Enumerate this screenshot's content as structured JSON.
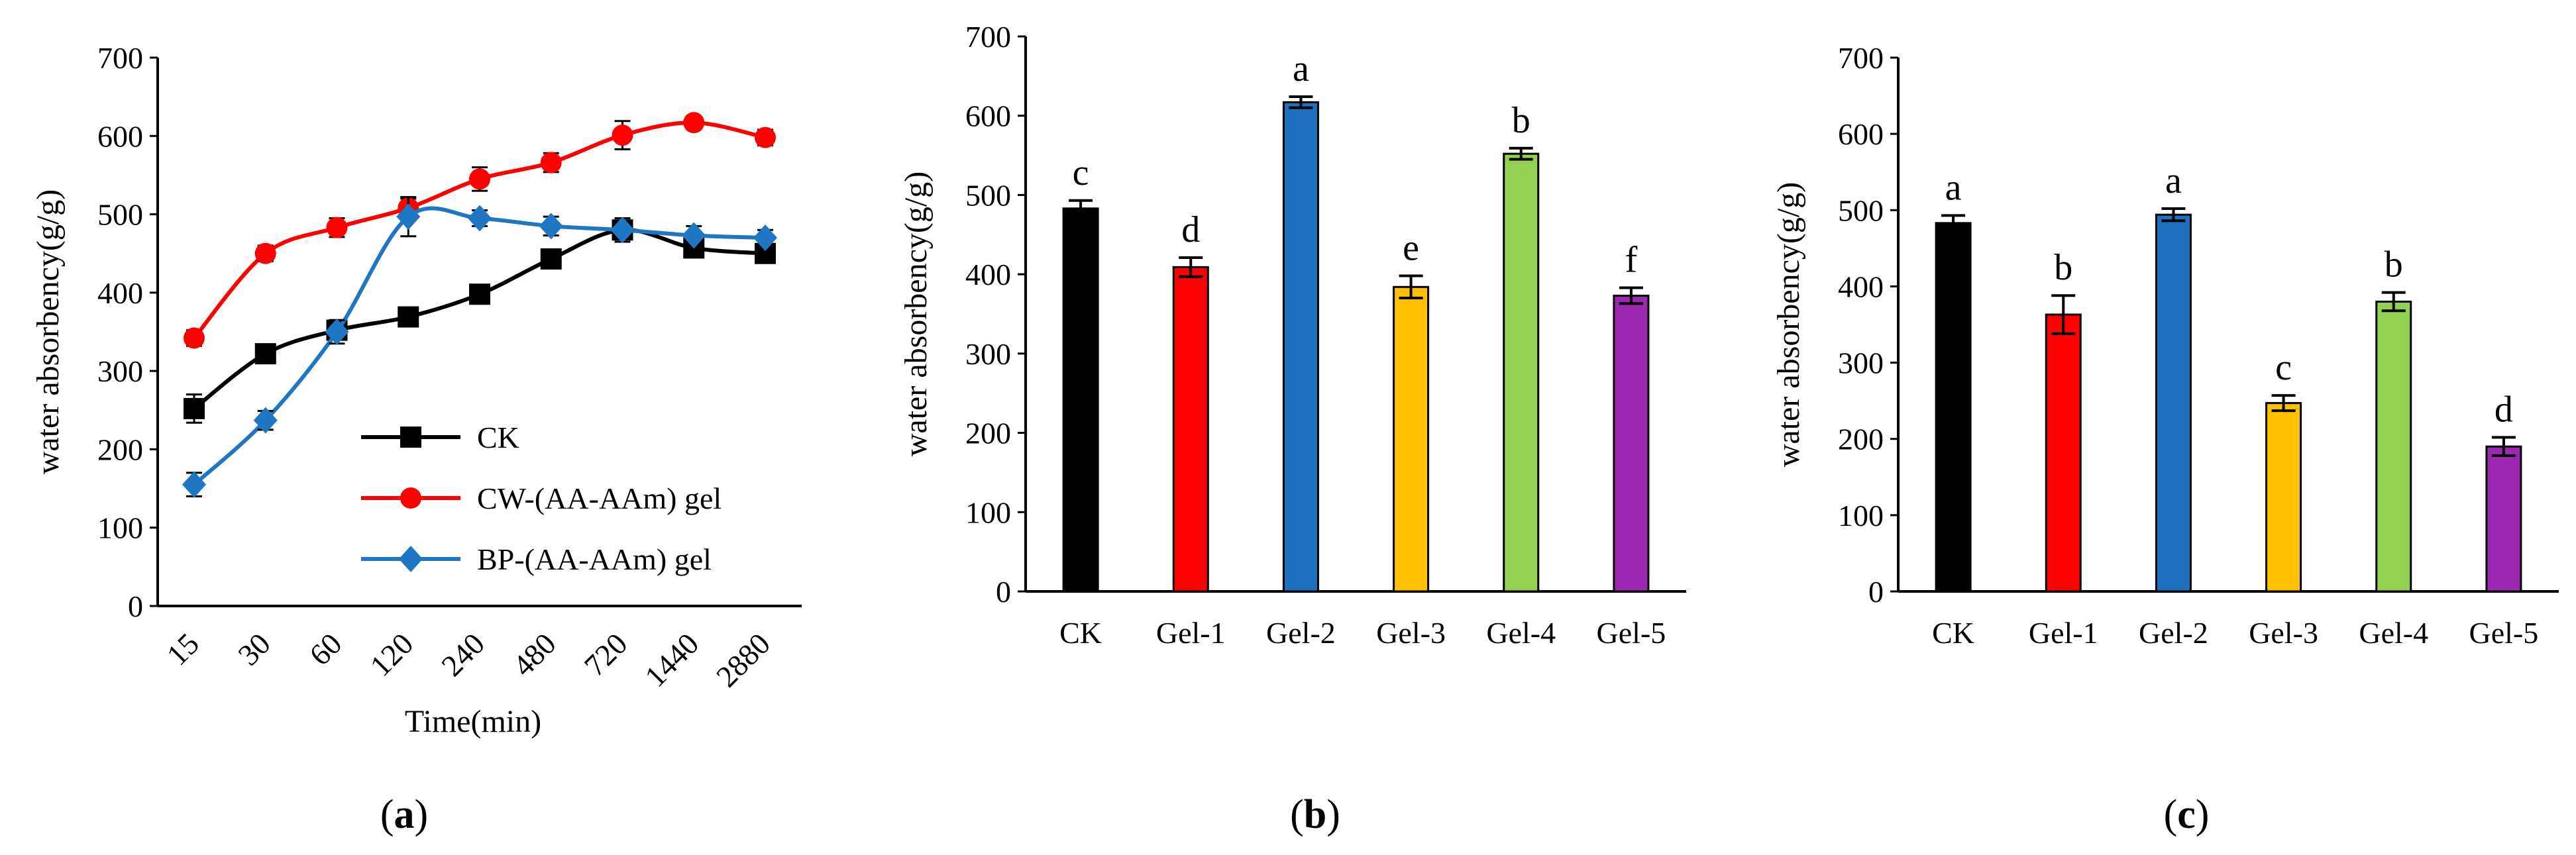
{
  "panels": [
    {
      "caption": "a",
      "chart_data": {
        "type": "line",
        "xlabel": "Time(min)",
        "ylabel": "water absorbency(g/g)",
        "categories": [
          "15",
          "30",
          "60",
          "120",
          "240",
          "480",
          "720",
          "1440",
          "2880"
        ],
        "ylim": [
          0,
          700
        ],
        "yticks": [
          0,
          100,
          200,
          300,
          400,
          500,
          600,
          700
        ],
        "grid": false,
        "legend_position": "bottom-right",
        "series": [
          {
            "name": "CK",
            "color": "#000000",
            "marker": "square",
            "values": [
              252,
              322,
              352,
              369,
              398,
              443,
              480,
              457,
              450
            ],
            "errors": [
              18,
              10,
              12,
              10,
              12,
              10,
              15,
              12,
              10
            ]
          },
          {
            "name": "CW-(AA-AAm) gel",
            "color": "#ff0000",
            "marker": "circle",
            "values": [
              342,
              450,
              483,
              508,
              545,
              566,
              601,
              617,
              598
            ],
            "errors": [
              10,
              10,
              12,
              12,
              15,
              12,
              18,
              8,
              10
            ]
          },
          {
            "name": "BP-(AA-AAm) gel",
            "color": "#1f77c4",
            "marker": "diamond",
            "values": [
              155,
              237,
              350,
              497,
              495,
              485,
              480,
              473,
              470
            ],
            "errors": [
              15,
              12,
              15,
              25,
              10,
              12,
              10,
              12,
              10
            ]
          }
        ]
      }
    },
    {
      "caption": "b",
      "chart_data": {
        "type": "bar",
        "xlabel": "",
        "ylabel": "water absorbency(g/g)",
        "categories": [
          "CK",
          "Gel-1",
          "Gel-2",
          "Gel-3",
          "Gel-4",
          "Gel-5"
        ],
        "values": [
          483,
          409,
          617,
          384,
          552,
          373
        ],
        "errors": [
          10,
          12,
          7,
          14,
          7,
          10
        ],
        "letters": [
          "c",
          "d",
          "a",
          "e",
          "b",
          "f"
        ],
        "colors": [
          "#000000",
          "#ff0000",
          "#1f6fbf",
          "#ffc000",
          "#92d050",
          "#9c27b0"
        ],
        "ylim": [
          0,
          700
        ],
        "yticks": [
          0,
          100,
          200,
          300,
          400,
          500,
          600,
          700
        ],
        "grid": false
      }
    },
    {
      "caption": "c",
      "chart_data": {
        "type": "bar",
        "xlabel": "",
        "ylabel": "water absorbency(g/g)",
        "categories": [
          "CK",
          "Gel-1",
          "Gel-2",
          "Gel-3",
          "Gel-4",
          "Gel-5"
        ],
        "values": [
          483,
          363,
          494,
          247,
          380,
          190
        ],
        "errors": [
          10,
          25,
          8,
          10,
          12,
          12
        ],
        "letters": [
          "a",
          "b",
          "a",
          "c",
          "b",
          "d"
        ],
        "colors": [
          "#000000",
          "#ff0000",
          "#1f6fbf",
          "#ffc000",
          "#92d050",
          "#9c27b0"
        ],
        "ylim": [
          0,
          700
        ],
        "yticks": [
          0,
          100,
          200,
          300,
          400,
          500,
          600,
          700
        ],
        "grid": false
      }
    }
  ]
}
